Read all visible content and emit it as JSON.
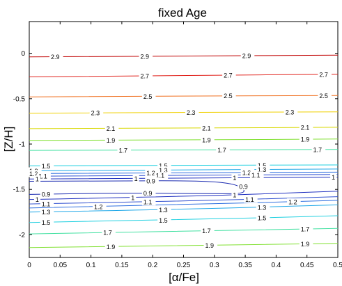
{
  "chart_data": {
    "type": "contour",
    "title": "fixed Age",
    "xlabel": "[α/Fe]",
    "ylabel": "[Z/H]",
    "xlim": [
      0,
      0.5
    ],
    "ylim": [
      -2.25,
      0.35
    ],
    "xticks": [
      "0",
      "0.05",
      "0.1",
      "0.15",
      "0.2",
      "0.25",
      "0.3",
      "0.35",
      "0.4",
      "0.45",
      "0.5"
    ],
    "yticks": [
      "0",
      "-0.5",
      "-1",
      "-1.5",
      "-2"
    ],
    "grid": false,
    "levels": [
      {
        "label": "2.9",
        "color": "#c00000",
        "points": [
          [
            0.0,
            -0.04
          ],
          [
            0.25,
            -0.03
          ],
          [
            0.5,
            -0.02
          ]
        ],
        "label_at": [
          0.035,
          0.18,
          0.345
        ]
      },
      {
        "label": "2.7",
        "color": "#e0201a",
        "points": [
          [
            0.0,
            -0.26
          ],
          [
            0.25,
            -0.245
          ],
          [
            0.5,
            -0.23
          ]
        ],
        "label_at": [
          0.18,
          0.315,
          0.47
        ]
      },
      {
        "label": "2.5",
        "color": "#f07020",
        "points": [
          [
            0.0,
            -0.48
          ],
          [
            0.25,
            -0.47
          ],
          [
            0.5,
            -0.465
          ]
        ],
        "label_at": [
          0.185,
          0.315,
          0.47
        ]
      },
      {
        "label": "2.3",
        "color": "#f0d000",
        "points": [
          [
            0.0,
            -0.66
          ],
          [
            0.25,
            -0.65
          ],
          [
            0.5,
            -0.645
          ]
        ],
        "label_at": [
          0.1,
          0.255,
          0.415
        ]
      },
      {
        "label": "2.1",
        "color": "#d8d800",
        "points": [
          [
            0.0,
            -0.83
          ],
          [
            0.25,
            -0.825
          ],
          [
            0.5,
            -0.815
          ]
        ],
        "label_at": [
          0.125,
          0.28,
          0.44
        ]
      },
      {
        "label": "1.9",
        "color": "#80e030",
        "points": [
          [
            0.0,
            -0.96
          ],
          [
            0.25,
            -0.955
          ],
          [
            0.5,
            -0.945
          ]
        ],
        "label_at": [
          0.125,
          0.28,
          0.44
        ]
      },
      {
        "label": "1.7",
        "color": "#40e0a0",
        "points": [
          [
            0.0,
            -1.07
          ],
          [
            0.25,
            -1.065
          ],
          [
            0.5,
            -1.06
          ]
        ],
        "label_at": [
          0.145,
          0.305,
          0.46
        ]
      },
      {
        "label": "1.5",
        "color": "#20d0e0",
        "points": [
          [
            0.0,
            -1.24
          ],
          [
            0.25,
            -1.235
          ],
          [
            0.5,
            -1.23
          ]
        ],
        "label_at": [
          0.02,
          0.21,
          0.37
        ]
      },
      {
        "label": "1.3",
        "color": "#20a8e8",
        "points": [
          [
            0.0,
            -1.295
          ],
          [
            0.25,
            -1.285
          ],
          [
            0.5,
            -1.275
          ]
        ],
        "label_at": [
          0.0,
          0.21,
          0.37
        ]
      },
      {
        "label": "1.2",
        "color": "#3070e0",
        "points": [
          [
            0.0,
            -1.325
          ],
          [
            0.25,
            -1.315
          ],
          [
            0.5,
            -1.31
          ]
        ],
        "label_at": [
          0.0,
          0.19,
          0.345
        ]
      },
      {
        "label": "1.1",
        "color": "#3050d0",
        "points": [
          [
            0.0,
            -1.355
          ],
          [
            0.25,
            -1.345
          ],
          [
            0.5,
            -1.335
          ]
        ],
        "label_at": [
          0.015,
          0.205,
          0.36
        ]
      },
      {
        "label": "1",
        "color": "#2030c0",
        "points": [
          [
            0.0,
            -1.385
          ],
          [
            0.25,
            -1.375
          ],
          [
            0.5,
            -1.365
          ]
        ],
        "label_at": [
          0.01,
          0.17,
          0.33,
          0.49
        ]
      },
      {
        "label": "0.9",
        "color": "#1a2ab0",
        "points": [
          [
            0.0,
            -1.41
          ],
          [
            0.15,
            -1.405
          ],
          [
            0.28,
            -1.405
          ],
          [
            0.33,
            -1.435
          ],
          [
            0.35,
            -1.5
          ],
          [
            0.345,
            -1.55
          ],
          [
            0.28,
            -1.545
          ],
          [
            0.15,
            -1.54
          ],
          [
            0.0,
            -1.555
          ]
        ],
        "label_at": [
          0.19,
          0.34,
          0.02,
          0.185
        ]
      },
      {
        "label": "1",
        "color": "#2030c0",
        "points": [
          [
            0.0,
            -1.61
          ],
          [
            0.25,
            -1.58
          ],
          [
            0.5,
            -1.52
          ]
        ],
        "label_at": [
          0.01,
          0.165,
          0.33
        ]
      },
      {
        "label": "1.1",
        "color": "#3050d0",
        "points": [
          [
            0.0,
            -1.66
          ],
          [
            0.25,
            -1.63
          ],
          [
            0.5,
            -1.58
          ]
        ],
        "label_at": [
          0.02,
          0.185,
          0.35
        ]
      },
      {
        "label": "1.2",
        "color": "#3070e0",
        "points": [
          [
            0.0,
            -1.705
          ],
          [
            0.25,
            -1.67
          ],
          [
            0.5,
            -1.62
          ]
        ],
        "label_at": [
          0.105,
          0.42
        ]
      },
      {
        "label": "1.3",
        "color": "#20a8e8",
        "points": [
          [
            0.0,
            -1.75
          ],
          [
            0.25,
            -1.72
          ],
          [
            0.5,
            -1.67
          ]
        ],
        "label_at": [
          0.02,
          0.21,
          0.37
        ]
      },
      {
        "label": "1.5",
        "color": "#20d0e0",
        "points": [
          [
            0.0,
            -1.865
          ],
          [
            0.25,
            -1.835
          ],
          [
            0.5,
            -1.79
          ]
        ],
        "label_at": [
          0.02,
          0.21,
          0.37
        ]
      },
      {
        "label": "1.7",
        "color": "#40e0a0",
        "points": [
          [
            0.0,
            -1.99
          ],
          [
            0.25,
            -1.96
          ],
          [
            0.5,
            -1.93
          ]
        ],
        "label_at": [
          0.12,
          0.28,
          0.44
        ]
      },
      {
        "label": "1.9",
        "color": "#80e030",
        "points": [
          [
            0.0,
            -2.14
          ],
          [
            0.25,
            -2.12
          ],
          [
            0.5,
            -2.095
          ]
        ],
        "label_at": [
          0.125,
          0.285,
          0.44
        ]
      }
    ]
  }
}
